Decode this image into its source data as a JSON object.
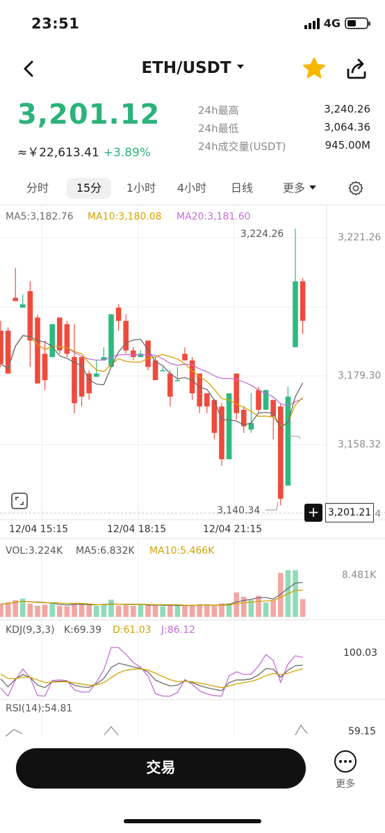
{
  "status_bar": {
    "time": "23:51",
    "network": "4G"
  },
  "header": {
    "pair": "ETH/USDT"
  },
  "price": {
    "last": "3,201.12",
    "fiat": "≈￥22,613.41",
    "change": "+3.89%",
    "stats": [
      {
        "label": "24h最高",
        "value": "3,240.26"
      },
      {
        "label": "24h最低",
        "value": "3,064.36"
      },
      {
        "label": "24h成交量(USDT)",
        "value": "945.00M"
      }
    ]
  },
  "tabs": [
    {
      "label": "分时"
    },
    {
      "label": "15分"
    },
    {
      "label": "1小时"
    },
    {
      "label": "4小时"
    },
    {
      "label": "日线"
    },
    {
      "label": "更多"
    }
  ],
  "active_tab": "15分",
  "chart_data": {
    "type": "candlestick",
    "ma_legend": {
      "ma5": "MA5:3,182.76",
      "ma10": "MA10:3,180.08",
      "ma20": "MA20:3,181.60"
    },
    "y_ticks": [
      "3,221.26",
      "3,179.30",
      "3,158.32",
      "3,137.34"
    ],
    "ylim": [
      3137.34,
      3221.26
    ],
    "x_ticks": [
      "12/04 15:15",
      "12/04 18:15",
      "12/04 21:15"
    ],
    "high_label": "3,224.26",
    "low_label": "3,140.34",
    "crosshair_price": "3,201.21",
    "candles": [
      [
        3193,
        3196,
        3183,
        3182
      ],
      [
        3193,
        3194,
        3180,
        3187
      ],
      [
        3203,
        3212,
        3202,
        3214
      ],
      [
        3200,
        3204,
        3201,
        3207
      ],
      [
        3205,
        3208,
        3190,
        3182
      ],
      [
        3197,
        3198,
        3177,
        3180
      ],
      [
        3186,
        3190,
        3178,
        3175
      ],
      [
        3185,
        3195,
        3195,
        3199
      ],
      [
        3197,
        3197,
        3187,
        3186
      ],
      [
        3195,
        3196,
        3186,
        3185
      ],
      [
        3185,
        3195,
        3171,
        3168
      ],
      [
        3185,
        3185,
        3173,
        3170
      ],
      [
        3180,
        3181,
        3174,
        3172
      ],
      [
        3179,
        3184,
        3180,
        3187
      ],
      [
        3184,
        3188,
        3185,
        3192
      ],
      [
        3182,
        3197,
        3198,
        3208
      ],
      [
        3200,
        3201,
        3196,
        3193
      ],
      [
        3196,
        3198,
        3187,
        3186
      ],
      [
        3187,
        3188,
        3185,
        3184
      ],
      [
        3185,
        3187,
        3186,
        3188
      ],
      [
        3190,
        3190,
        3182,
        3181
      ],
      [
        3184,
        3185,
        3178,
        3178
      ],
      [
        3181,
        3182,
        3181,
        3182
      ],
      [
        3180,
        3181,
        3173,
        3170
      ],
      [
        3178,
        3182,
        3178,
        3182
      ],
      [
        3186,
        3188,
        3184,
        3185
      ],
      [
        3184,
        3185,
        3174,
        3172
      ],
      [
        3180,
        3180,
        3170,
        3168
      ],
      [
        3174,
        3174,
        3170,
        3168
      ],
      [
        3172,
        3172,
        3162,
        3160
      ],
      [
        3170,
        3171,
        3154,
        3152
      ],
      [
        3154,
        3168,
        3174,
        3177
      ],
      [
        3180,
        3180,
        3168,
        3166
      ],
      [
        3169,
        3170,
        3164,
        3162
      ],
      [
        3163,
        3174,
        3165,
        3162
      ],
      [
        3175,
        3176,
        3169,
        3168
      ],
      [
        3169,
        3174,
        3175,
        3178
      ],
      [
        3172,
        3172,
        3167,
        3160
      ],
      [
        3170,
        3171,
        3142,
        3140
      ],
      [
        3146,
        3176,
        3173,
        3178
      ],
      [
        3188,
        3224,
        3208,
        3209
      ],
      [
        3208,
        3209,
        3196,
        3192
      ]
    ],
    "volume": {
      "legend_vol": "VOL:3.224K",
      "legend_ma5": "MA5:6.832K",
      "legend_ma10": "MA10:5.466K",
      "max_label": "8.481K",
      "values": [
        2.3,
        2.6,
        3.0,
        3.3,
        2.4,
        2.0,
        2.2,
        2.6,
        2.0,
        1.9,
        2.5,
        2.4,
        2.1,
        2.0,
        2.2,
        3.1,
        2.0,
        2.1,
        2.0,
        2.3,
        2.2,
        2.1,
        1.9,
        2.0,
        2.2,
        2.1,
        2.0,
        2.3,
        2.2,
        2.0,
        2.4,
        2.4,
        4.4,
        3.6,
        3.0,
        3.8,
        2.6,
        3.0,
        7.9,
        8.4,
        8.4,
        3.2
      ]
    },
    "kdj": {
      "legend_param": "KDJ(9,3,3)",
      "legend_k": "K:69.39",
      "legend_d": "D:61.03",
      "legend_j": "J:86.12",
      "max_label": "100.03"
    },
    "rsi": {
      "legend": "RSI(14):54.81",
      "max_label": "59.15"
    }
  },
  "bottom": {
    "trade_label": "交易",
    "more_label": "更多"
  }
}
